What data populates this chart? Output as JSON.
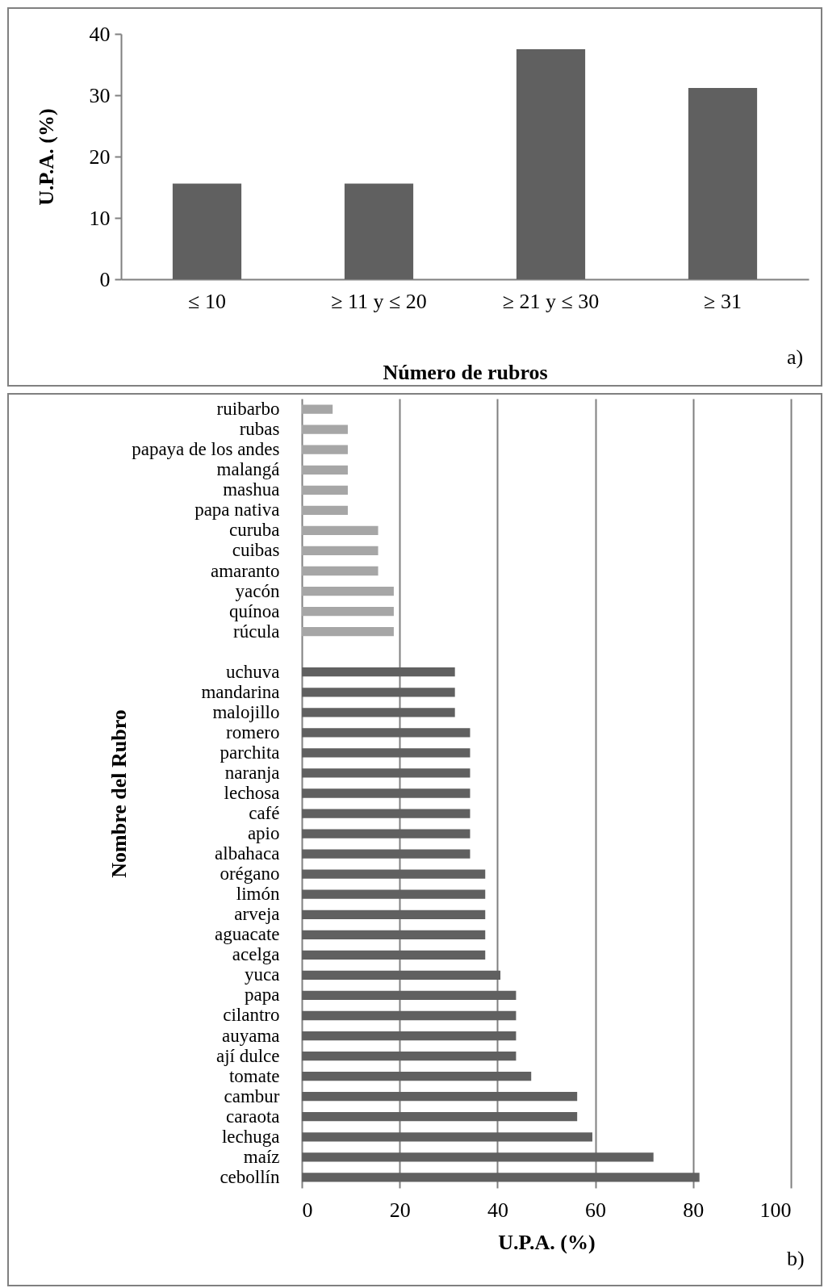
{
  "chart_data": [
    {
      "type": "bar",
      "categories": [
        "≤ 10",
        "≥ 11 y  ≤ 20",
        "≥ 21 y  ≤ 30",
        "≥ 31"
      ],
      "values": [
        15.6,
        15.6,
        37.5,
        31.2
      ],
      "color": "#606060",
      "ylim": [
        0,
        40
      ],
      "yticks": [
        0,
        10,
        20,
        30,
        40
      ],
      "xlabel": "Número de rubros",
      "ylabel": "U.P.A. (%)",
      "annotations": [
        "a)"
      ]
    },
    {
      "type": "bar",
      "orientation": "horizontal",
      "categories": [
        "ruibarbo",
        "rubas",
        "papaya de los andes",
        "malangá",
        "mashua",
        "papa nativa",
        "curuba",
        "cuibas",
        "amaranto",
        "yacón",
        "quínoa",
        "rúcula",
        null,
        "uchuva",
        "mandarina",
        "malojillo",
        "romero",
        "parchita",
        "naranja",
        "lechosa",
        "café",
        "apio",
        "albahaca",
        "orégano",
        "limón",
        "arveja",
        "aguacate",
        "acelga",
        "yuca",
        "papa",
        "cilantro",
        "auyama",
        "ají dulce",
        "tomate",
        "cambur",
        "caraota",
        "lechuga",
        "maíz",
        "cebollín"
      ],
      "values": [
        6.3,
        9.4,
        9.4,
        9.4,
        9.4,
        9.4,
        15.6,
        15.6,
        15.6,
        18.8,
        18.8,
        18.8,
        null,
        31.3,
        31.3,
        31.3,
        34.4,
        34.4,
        34.4,
        34.4,
        34.4,
        34.4,
        34.4,
        37.5,
        37.5,
        37.5,
        37.5,
        37.5,
        40.6,
        43.8,
        43.8,
        43.8,
        43.8,
        46.9,
        56.3,
        56.3,
        59.4,
        71.9,
        81.3
      ],
      "colors": [
        "#a6a6a6",
        "#a6a6a6",
        "#a6a6a6",
        "#a6a6a6",
        "#a6a6a6",
        "#a6a6a6",
        "#a6a6a6",
        "#a6a6a6",
        "#a6a6a6",
        "#a6a6a6",
        "#a6a6a6",
        "#a6a6a6",
        null,
        "#606060",
        "#606060",
        "#606060",
        "#606060",
        "#606060",
        "#606060",
        "#606060",
        "#606060",
        "#606060",
        "#606060",
        "#606060",
        "#606060",
        "#606060",
        "#606060",
        "#606060",
        "#606060",
        "#606060",
        "#606060",
        "#606060",
        "#606060",
        "#606060",
        "#606060",
        "#606060",
        "#606060",
        "#606060",
        "#606060"
      ],
      "xlim": [
        0,
        100
      ],
      "xticks": [
        0,
        20,
        40,
        60,
        80,
        100
      ],
      "grid": "x",
      "xlabel": "U.P.A. (%)",
      "ylabel": "Nombre del Rubro",
      "annotations": [
        "b)"
      ]
    }
  ]
}
